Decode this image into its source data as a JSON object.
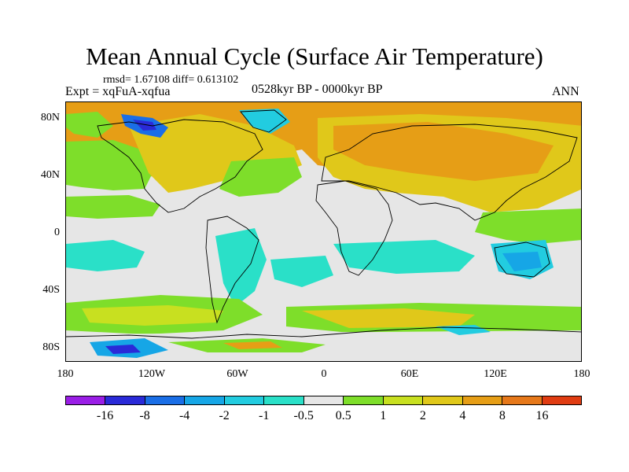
{
  "title": "Mean Annual Cycle (Surface Air Temperature)",
  "stats": "rmsd= 1.67108 diff= 0.613102",
  "expt": "Expt = xqFuA-xqfua",
  "period": "0528kyr BP - 0000kyr BP",
  "season": "ANN",
  "y_axis": [
    "80N",
    "40N",
    "0",
    "40S",
    "80S"
  ],
  "x_axis": [
    "180",
    "120W",
    "60W",
    "0",
    "60E",
    "120E",
    "180"
  ],
  "colorbar": {
    "colors": [
      "#9a1ee6",
      "#2a2ad8",
      "#1a6ee6",
      "#16a6e6",
      "#22cce0",
      "#2ae0c8",
      "#e6e6e6",
      "#7ede2a",
      "#c8e020",
      "#e0c81a",
      "#e69e16",
      "#e6781a",
      "#e03c12"
    ],
    "labels": [
      "-16",
      "-8",
      "-4",
      "-2",
      "-1",
      "-0.5",
      "0.5",
      "1",
      "2",
      "4",
      "8",
      "16"
    ]
  }
}
